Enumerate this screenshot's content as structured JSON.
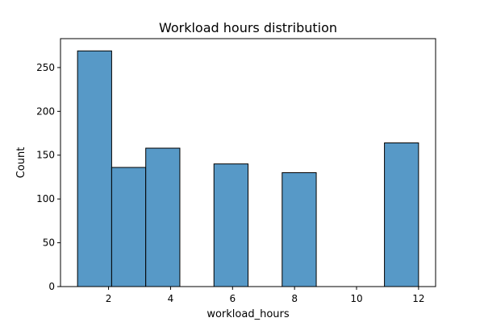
{
  "chart_data": {
    "type": "bar",
    "title": "Workload hours distribution",
    "xlabel": "workload_hours",
    "ylabel": "Count",
    "xlim": [
      0.45,
      12.55
    ],
    "ylim": [
      0,
      283
    ],
    "grid": false,
    "bar_color": "#5799C7",
    "edge_color": "#000000",
    "bins": [
      {
        "x0": 1.0,
        "x1": 2.1,
        "value": 269
      },
      {
        "x0": 2.1,
        "x1": 3.2,
        "value": 136
      },
      {
        "x0": 3.2,
        "x1": 4.3,
        "value": 158
      },
      {
        "x0": 4.3,
        "x1": 5.4,
        "value": 0
      },
      {
        "x0": 5.4,
        "x1": 6.5,
        "value": 140
      },
      {
        "x0": 6.5,
        "x1": 7.6,
        "value": 0
      },
      {
        "x0": 7.6,
        "x1": 8.7,
        "value": 130
      },
      {
        "x0": 8.7,
        "x1": 9.8,
        "value": 0
      },
      {
        "x0": 9.8,
        "x1": 10.9,
        "value": 0
      },
      {
        "x0": 10.9,
        "x1": 12.0,
        "value": 164
      }
    ],
    "x_ticks": [
      2,
      4,
      6,
      8,
      10,
      12
    ],
    "y_ticks": [
      0,
      50,
      100,
      150,
      200,
      250
    ]
  }
}
